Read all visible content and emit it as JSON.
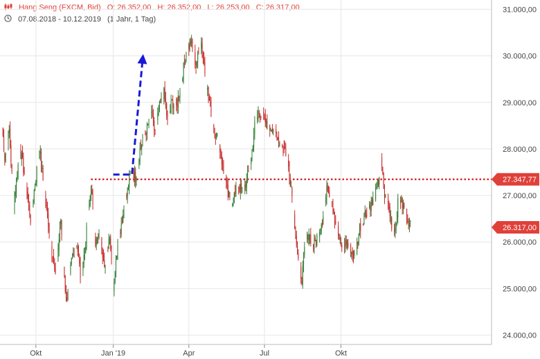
{
  "header": {
    "instrument": "Hang Seng (FXCM, Bid)",
    "open": "O: 26.352,00",
    "high": "H: 26.352,00",
    "low": "L: 26.253,00",
    "close": "C: 26.317,00",
    "date_range": "07.08.2018 - 10.12.2019",
    "period": "(1 Jahr, 1 Tag)"
  },
  "colors": {
    "accent": "#e0403a",
    "up": "#2e7d32",
    "down": "#c62828",
    "level_line": "#d32f2f",
    "arrow": "#1a1ad6",
    "grid": "#e6e6e6",
    "price_tag": "#e0403a"
  },
  "chart_data": {
    "type": "candlestick",
    "title": "Hang Seng (FXCM, Bid)",
    "ylim": [
      23800,
      31200
    ],
    "y_ticks": [
      "31.000,00",
      "30.000,00",
      "29.000,00",
      "28.000,00",
      "27.000,00",
      "26.000,00",
      "25.000,00",
      "24.000,00"
    ],
    "y_tick_values": [
      31000,
      30000,
      29000,
      28000,
      27000,
      26000,
      25000,
      24000
    ],
    "x_ticks": [
      "Okt",
      "Jan '19",
      "Apr",
      "Jul",
      "Okt"
    ],
    "x_tick_index": [
      38,
      125,
      210,
      295,
      381
    ],
    "n_days": 460,
    "anchors": [
      [
        0,
        28500
      ],
      [
        3,
        27800
      ],
      [
        8,
        28400
      ],
      [
        13,
        26800
      ],
      [
        20,
        28000
      ],
      [
        25,
        27500
      ],
      [
        32,
        26500
      ],
      [
        36,
        27100
      ],
      [
        42,
        28000
      ],
      [
        48,
        27000
      ],
      [
        55,
        26000
      ],
      [
        60,
        25200
      ],
      [
        66,
        26500
      ],
      [
        70,
        25200
      ],
      [
        73,
        24700
      ],
      [
        78,
        25600
      ],
      [
        84,
        26000
      ],
      [
        88,
        25300
      ],
      [
        93,
        25800
      ],
      [
        100,
        27200
      ],
      [
        105,
        26000
      ],
      [
        110,
        26100
      ],
      [
        116,
        25500
      ],
      [
        121,
        26200
      ],
      [
        125,
        25000
      ],
      [
        130,
        26000
      ],
      [
        136,
        26600
      ],
      [
        141,
        27100
      ],
      [
        145,
        27600
      ],
      [
        150,
        27400
      ],
      [
        155,
        28000
      ],
      [
        160,
        28300
      ],
      [
        164,
        28500
      ],
      [
        168,
        28800
      ],
      [
        172,
        28300
      ],
      [
        177,
        28900
      ],
      [
        182,
        29200
      ],
      [
        186,
        28600
      ],
      [
        191,
        29000
      ],
      [
        196,
        28900
      ],
      [
        202,
        29500
      ],
      [
        207,
        30100
      ],
      [
        212,
        30300
      ],
      [
        218,
        29800
      ],
      [
        224,
        30300
      ],
      [
        229,
        29500
      ],
      [
        234,
        28900
      ],
      [
        239,
        28400
      ],
      [
        244,
        28100
      ],
      [
        249,
        27500
      ],
      [
        254,
        27000
      ],
      [
        259,
        26900
      ],
      [
        265,
        27200
      ],
      [
        270,
        27100
      ],
      [
        275,
        27300
      ],
      [
        280,
        27800
      ],
      [
        284,
        28500
      ],
      [
        289,
        28800
      ],
      [
        294,
        28700
      ],
      [
        299,
        28400
      ],
      [
        304,
        28500
      ],
      [
        309,
        28200
      ],
      [
        315,
        28100
      ],
      [
        320,
        27900
      ],
      [
        325,
        27200
      ],
      [
        329,
        26400
      ],
      [
        333,
        25600
      ],
      [
        337,
        25200
      ],
      [
        341,
        26000
      ],
      [
        345,
        26200
      ],
      [
        350,
        25900
      ],
      [
        356,
        26200
      ],
      [
        361,
        26600
      ],
      [
        366,
        27200
      ],
      [
        371,
        26900
      ],
      [
        376,
        26300
      ],
      [
        381,
        25900
      ],
      [
        387,
        26000
      ],
      [
        392,
        25800
      ],
      [
        397,
        25700
      ],
      [
        402,
        26300
      ],
      [
        408,
        26600
      ],
      [
        414,
        26800
      ],
      [
        418,
        26900
      ],
      [
        422,
        27200
      ],
      [
        426,
        27700
      ],
      [
        430,
        27000
      ],
      [
        434,
        26800
      ],
      [
        438,
        26400
      ],
      [
        442,
        26300
      ],
      [
        446,
        27000
      ],
      [
        450,
        26800
      ],
      [
        454,
        26600
      ],
      [
        458,
        26400
      ],
      [
        460,
        26317
      ]
    ],
    "annotations": {
      "horizontal_level": 27347.77,
      "horizontal_level_label": "27.347,77",
      "last_price": 26317,
      "last_price_label": "26.317,00",
      "arrow_points": [
        [
          125,
          27450
        ],
        [
          142,
          27450
        ],
        [
          146,
          27450
        ],
        [
          158,
          29920
        ]
      ]
    }
  }
}
